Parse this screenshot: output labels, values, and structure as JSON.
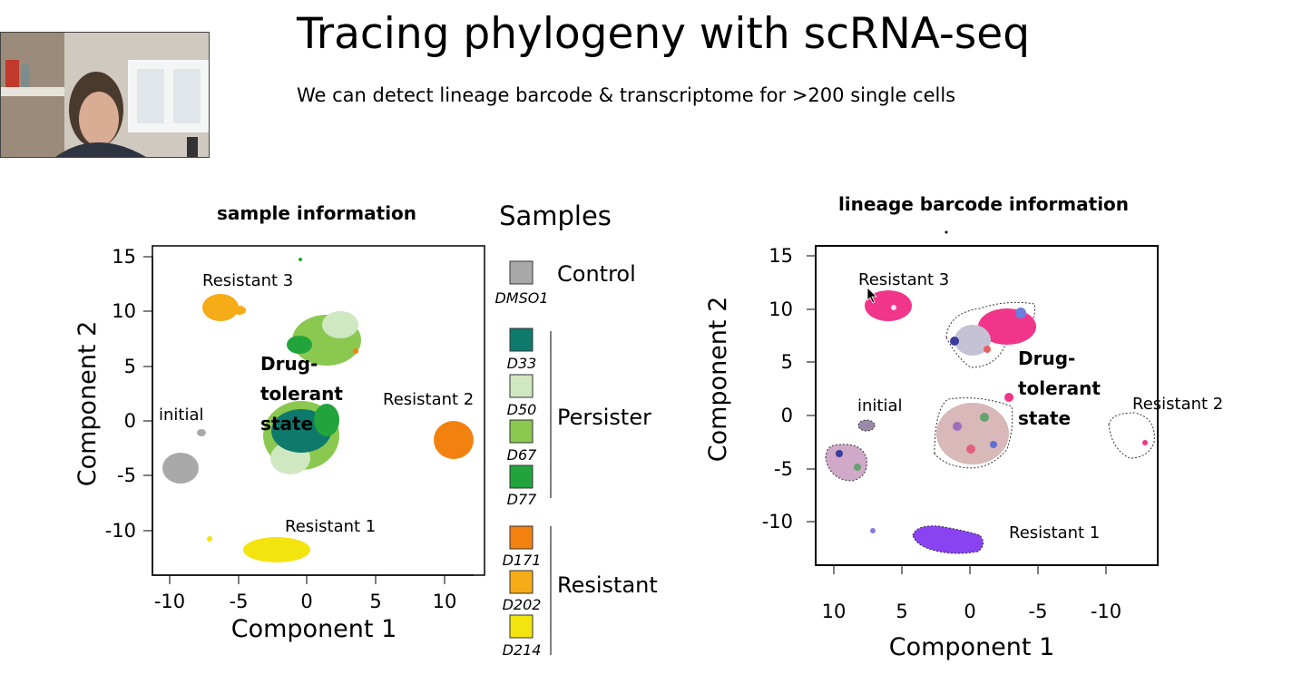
{
  "slide": {
    "title": "Tracing phylogeny with scRNA-seq",
    "subtitle": "We can detect lineage barcode & transcriptome for >200 single cells"
  },
  "left_plot": {
    "title": "sample information",
    "xlabel": "Component 1",
    "ylabel": "Component 2",
    "xticks": [
      "-10",
      "-5",
      "0",
      "5",
      "10"
    ],
    "yticks": [
      "15",
      "10",
      "5",
      "0",
      "-5",
      "-10"
    ],
    "labels": {
      "resistant3": "Resistant 3",
      "resistant2": "Resistant 2",
      "resistant1": "Resistant 1",
      "initial": "initial",
      "drug1": "Drug-",
      "drug2": "tolerant",
      "drug3": "state"
    }
  },
  "legend": {
    "title": "Samples",
    "groups": [
      "Control",
      "Persister",
      "Resistant"
    ],
    "items": [
      {
        "label": "DMSO1",
        "color": "#a9a9a9"
      },
      {
        "label": "D33",
        "color": "#0e7a6c"
      },
      {
        "label": "D50",
        "color": "#cfe8c2"
      },
      {
        "label": "D67",
        "color": "#8ac84f"
      },
      {
        "label": "D77",
        "color": "#22a33c"
      },
      {
        "label": "D171",
        "color": "#f3810f"
      },
      {
        "label": "D202",
        "color": "#f5ac16"
      },
      {
        "label": "D214",
        "color": "#f3e40f"
      }
    ]
  },
  "right_plot": {
    "title": "lineage barcode information",
    "xlabel": "Component 1",
    "ylabel": "Component 2",
    "xticks": [
      "10",
      "5",
      "0",
      "-5",
      "-10"
    ],
    "yticks": [
      "15",
      "10",
      "5",
      "0",
      "-5",
      "-10"
    ],
    "labels": {
      "resistant3": "Resistant 3",
      "resistant2": "Resistant 2",
      "resistant1": "Resistant 1",
      "initial": "initial",
      "drug1": "Drug-",
      "drug2": "tolerant",
      "drug3": "state"
    }
  }
}
